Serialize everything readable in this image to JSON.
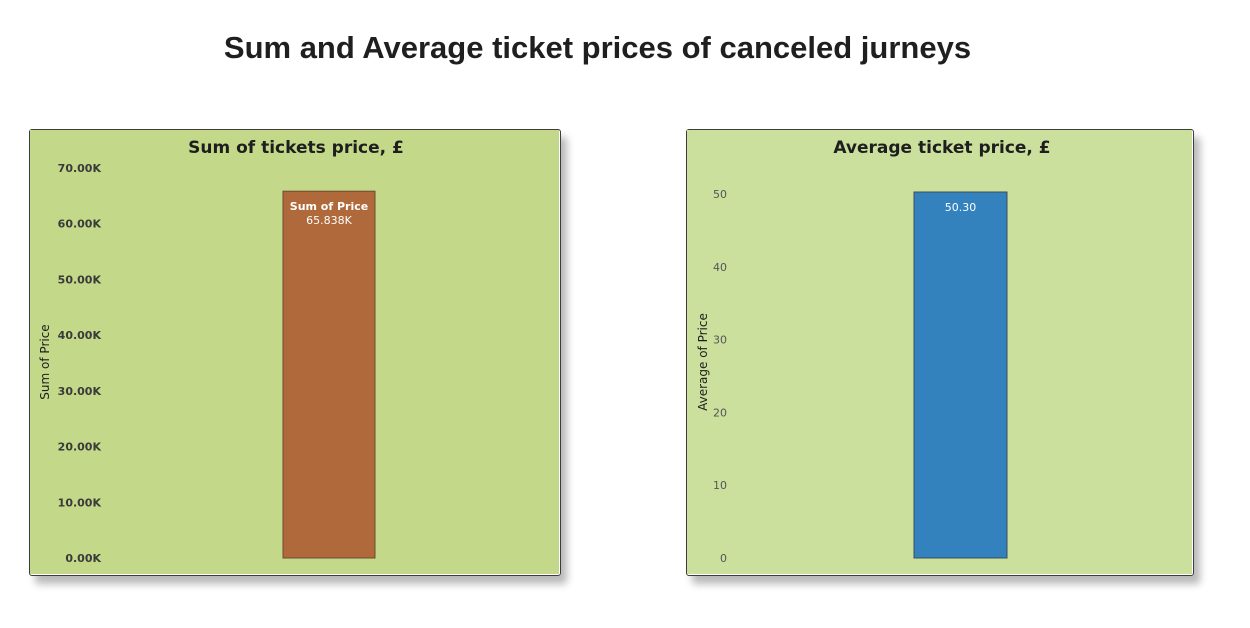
{
  "page_title": "Sum and Average ticket prices of canceled jurneys",
  "chart_data": [
    {
      "type": "bar",
      "title": "Sum of tickets price, £",
      "xlabel": "",
      "ylabel": "Sum of Price",
      "ylim": [
        0,
        70000
      ],
      "yticks": [
        "0.00K",
        "10.00K",
        "20.00K",
        "30.00K",
        "40.00K",
        "50.00K",
        "60.00K",
        "70.00K"
      ],
      "series": [
        {
          "name": "Sum of Price",
          "values": [
            65838
          ],
          "data_labels": [
            "65.838K"
          ]
        }
      ],
      "grid": false,
      "colors": {
        "background": "#c3d888",
        "bar": "#b0693a",
        "bar_border": "#6b4a32"
      }
    },
    {
      "type": "bar",
      "title": "Average ticket price, £",
      "xlabel": "",
      "ylabel": "Average of Price",
      "ylim": [
        0,
        50.3
      ],
      "yticks": [
        "0",
        "10",
        "20",
        "30",
        "40",
        "50"
      ],
      "series": [
        {
          "values": [
            50.3
          ],
          "data_labels": [
            "50.30"
          ]
        }
      ],
      "grid": false,
      "colors": {
        "background": "#cbe09c",
        "bar": "#3381bd",
        "bar_border": "#3a4f5e"
      }
    }
  ]
}
